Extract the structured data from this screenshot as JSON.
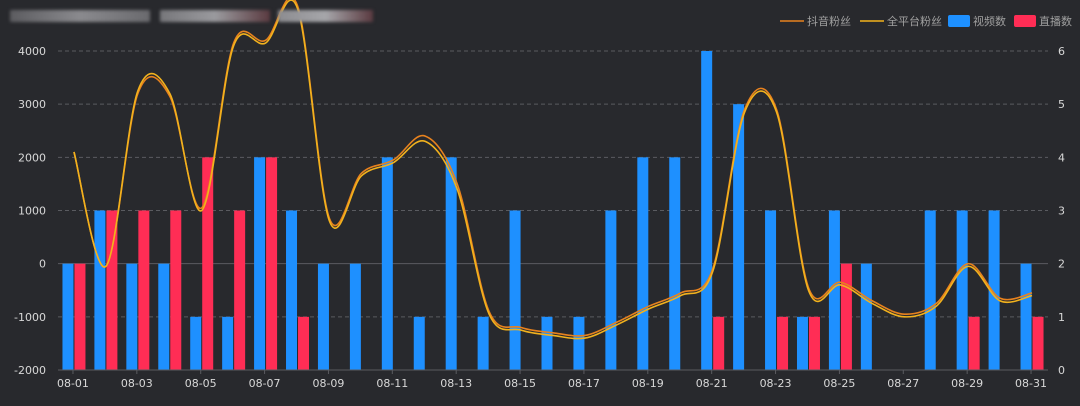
{
  "chart_data": {
    "type": "bar",
    "title": "",
    "categories": [
      "08-01",
      "08-02",
      "08-03",
      "08-04",
      "08-05",
      "08-06",
      "08-07",
      "08-08",
      "08-09",
      "08-10",
      "08-11",
      "08-12",
      "08-13",
      "08-14",
      "08-15",
      "08-16",
      "08-17",
      "08-18",
      "08-19",
      "08-20",
      "08-21",
      "08-22",
      "08-23",
      "08-24",
      "08-25",
      "08-26",
      "08-27",
      "08-28",
      "08-29",
      "08-30",
      "08-31"
    ],
    "x_tick_labels": [
      "08-01",
      "08-03",
      "08-05",
      "08-07",
      "08-09",
      "08-11",
      "08-13",
      "08-15",
      "08-17",
      "08-19",
      "08-21",
      "08-23",
      "08-25",
      "08-27",
      "08-29",
      "08-31"
    ],
    "y_left": {
      "min": -2000,
      "max": 4000,
      "ticks": [
        4000,
        3000,
        2000,
        1000,
        0,
        -1000,
        -2000
      ]
    },
    "y_right": {
      "min": 0,
      "max": 6,
      "ticks": [
        6,
        5,
        4,
        3,
        2,
        1,
        0
      ]
    },
    "grid": true,
    "legend_position": "top-right",
    "colors": {
      "background": "#28292d",
      "grid": "#5a5b60",
      "axis_text": "#d8d8d8",
      "legend_text": "#a0a0a0",
      "douyin_fans": "#e8821e",
      "all_platform_fans": "#f2b21d",
      "video_count": "#1e90ff",
      "live_count": "#ff2d55"
    },
    "series": [
      {
        "name": "抖音粉丝",
        "kind": "line",
        "axis": "left",
        "values": [
          2100,
          -50,
          3200,
          3150,
          1050,
          4150,
          4200,
          4850,
          850,
          1700,
          1950,
          2400,
          1500,
          -900,
          -1200,
          -1300,
          -1350,
          -1100,
          -800,
          -550,
          -100,
          2900,
          2900,
          -450,
          -350,
          -700,
          -950,
          -750,
          0,
          -650,
          -550
        ]
      },
      {
        "name": "全平台粉丝",
        "kind": "line",
        "axis": "left",
        "values": [
          2100,
          -50,
          3250,
          3200,
          1000,
          4100,
          4150,
          4800,
          800,
          1650,
          1900,
          2300,
          1400,
          -950,
          -1250,
          -1350,
          -1400,
          -1150,
          -850,
          -600,
          -150,
          2850,
          2850,
          -500,
          -400,
          -750,
          -1000,
          -800,
          -50,
          -700,
          -600
        ]
      },
      {
        "name": "视频数",
        "kind": "bar",
        "axis": "right",
        "values": [
          2,
          3,
          2,
          2,
          1,
          1,
          4,
          3,
          2,
          2,
          4,
          1,
          4,
          1,
          3,
          1,
          1,
          3,
          4,
          4,
          6,
          5,
          3,
          1,
          3,
          2,
          0,
          3,
          3,
          3,
          2
        ]
      },
      {
        "name": "直播数",
        "kind": "bar",
        "axis": "right",
        "values": [
          2,
          3,
          3,
          3,
          4,
          3,
          4,
          1,
          0,
          0,
          0,
          0,
          0,
          0,
          0,
          0,
          0,
          0,
          0,
          0,
          1,
          0,
          1,
          1,
          2,
          0,
          0,
          0,
          1,
          0,
          1
        ]
      }
    ]
  },
  "header_redacted_colors": [
    "#c9c9c9",
    "#8f8f8f",
    "#b5b5b5"
  ]
}
